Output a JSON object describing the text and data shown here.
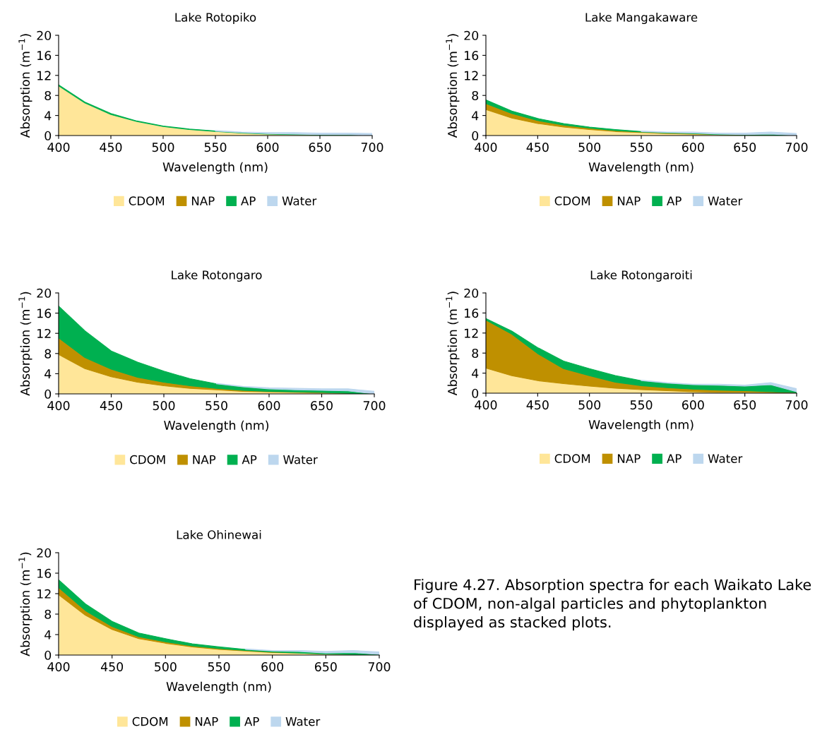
{
  "chart_data": [
    {
      "type": "area",
      "stacked": true,
      "title": "Lake Rotopiko",
      "xlabel": "Wavelength (nm)",
      "ylabel": "Absorption (m$^{−1}$)",
      "x": [
        400,
        425,
        450,
        475,
        500,
        525,
        550,
        575,
        600,
        625,
        650,
        675,
        700
      ],
      "xlim": [
        400,
        700
      ],
      "xticks": [
        400,
        450,
        500,
        550,
        600,
        650,
        700
      ],
      "ylim": [
        0,
        20
      ],
      "yticks": [
        0,
        4,
        8,
        12,
        16,
        20
      ],
      "legend": "bottom",
      "series": [
        {
          "name": "CDOM",
          "color": "#ffe699",
          "values": [
            9.9,
            6.5,
            4.2,
            2.8,
            1.8,
            1.2,
            0.8,
            0.5,
            0.3,
            0.2,
            0.1,
            0.1,
            0
          ]
        },
        {
          "name": "NAP",
          "color": "#bf9000",
          "values": [
            null,
            null,
            null,
            null,
            null,
            null,
            null,
            null,
            null,
            null,
            null,
            null,
            null
          ]
        },
        {
          "name": "AP",
          "color": "#00b050",
          "values": [
            0.2,
            0.2,
            0.2,
            0.1,
            0.1,
            0.1,
            0.1,
            0.1,
            0.1,
            0.1,
            0.1,
            0.1,
            0
          ]
        },
        {
          "name": "Water",
          "color": "#bdd7ee",
          "values": [
            null,
            null,
            null,
            null,
            null,
            null,
            0.1,
            0.1,
            0.2,
            0.3,
            0.3,
            0.3,
            0.4
          ]
        }
      ]
    },
    {
      "type": "area",
      "stacked": true,
      "title": "Lake Mangakaware",
      "xlabel": "Wavelength (nm)",
      "ylabel": "Absorption (m$^{−1}$)",
      "x": [
        400,
        425,
        450,
        475,
        500,
        525,
        550,
        575,
        600,
        625,
        650,
        675,
        700
      ],
      "xlim": [
        400,
        700
      ],
      "xticks": [
        400,
        450,
        500,
        550,
        600,
        650,
        700
      ],
      "ylim": [
        0,
        20
      ],
      "yticks": [
        0,
        4,
        8,
        12,
        16,
        20
      ],
      "legend": "bottom",
      "series": [
        {
          "name": "CDOM",
          "color": "#ffe699",
          "values": [
            5.2,
            3.5,
            2.4,
            1.7,
            1.2,
            0.8,
            0.6,
            0.4,
            0.3,
            0.2,
            0.1,
            0.1,
            0
          ]
        },
        {
          "name": "NAP",
          "color": "#bf9000",
          "values": [
            1.2,
            0.9,
            0.6,
            0.4,
            0.3,
            0.2,
            0.1,
            0.1,
            0.1,
            0,
            0,
            0,
            0
          ]
        },
        {
          "name": "AP",
          "color": "#00b050",
          "values": [
            0.7,
            0.5,
            0.4,
            0.3,
            0.2,
            0.2,
            0.1,
            0.1,
            0.1,
            0.1,
            0.1,
            0.2,
            0
          ]
        },
        {
          "name": "Water",
          "color": "#bdd7ee",
          "values": [
            null,
            null,
            null,
            null,
            null,
            null,
            0.1,
            0.1,
            0.2,
            0.2,
            0.3,
            0.4,
            0.4
          ]
        }
      ]
    },
    {
      "type": "area",
      "stacked": true,
      "title": "Lake Rotongaro",
      "xlabel": "Wavelength (nm)",
      "ylabel": "Absorption (m$^{−1}$)",
      "x": [
        400,
        425,
        450,
        475,
        500,
        525,
        550,
        575,
        600,
        625,
        650,
        675,
        700
      ],
      "xlim": [
        400,
        700
      ],
      "xticks": [
        400,
        450,
        500,
        550,
        600,
        650,
        700
      ],
      "ylim": [
        0,
        20
      ],
      "yticks": [
        0,
        4,
        8,
        12,
        16,
        20
      ],
      "legend": "bottom",
      "series": [
        {
          "name": "CDOM",
          "color": "#ffe699",
          "values": [
            7.8,
            5.0,
            3.4,
            2.3,
            1.6,
            1.1,
            0.8,
            0.5,
            0.4,
            0.3,
            0.2,
            0.1,
            0
          ]
        },
        {
          "name": "NAP",
          "color": "#bf9000",
          "values": [
            3.3,
            2.2,
            1.5,
            1.0,
            0.7,
            0.5,
            0.3,
            0.2,
            0.1,
            0.1,
            0.1,
            0,
            0
          ]
        },
        {
          "name": "AP",
          "color": "#00b050",
          "values": [
            6.3,
            5.3,
            3.6,
            3.0,
            2.2,
            1.4,
            0.9,
            0.7,
            0.5,
            0.4,
            0.4,
            0.5,
            0
          ]
        },
        {
          "name": "Water",
          "color": "#bdd7ee",
          "values": [
            null,
            null,
            null,
            null,
            null,
            null,
            0.1,
            0.1,
            0.2,
            0.3,
            0.3,
            0.4,
            0.5
          ]
        }
      ]
    },
    {
      "type": "area",
      "stacked": true,
      "title": "Lake Rotongaroiti",
      "xlabel": "Wavelength (nm)",
      "ylabel": "Absorption (m$^{−1}$)",
      "x": [
        400,
        425,
        450,
        475,
        500,
        525,
        550,
        575,
        600,
        625,
        650,
        675,
        700
      ],
      "xlim": [
        400,
        700
      ],
      "xticks": [
        400,
        450,
        500,
        550,
        600,
        650,
        700
      ],
      "ylim": [
        0,
        20
      ],
      "yticks": [
        0,
        4,
        8,
        12,
        16,
        20
      ],
      "legend": "bottom",
      "series": [
        {
          "name": "CDOM",
          "color": "#ffe699",
          "values": [
            5.0,
            3.5,
            2.5,
            1.9,
            1.4,
            1.0,
            0.7,
            0.5,
            0.3,
            0.2,
            0.2,
            0.1,
            0
          ]
        },
        {
          "name": "NAP",
          "color": "#bf9000",
          "values": [
            9.6,
            8.3,
            5.4,
            3.0,
            2.1,
            1.2,
            0.8,
            0.6,
            0.5,
            0.4,
            0.3,
            0.2,
            0.1
          ]
        },
        {
          "name": "AP",
          "color": "#00b050",
          "values": [
            0.3,
            0.6,
            1.2,
            1.5,
            1.4,
            1.3,
            1.0,
            0.9,
            0.9,
            1.0,
            0.9,
            1.4,
            0.2
          ]
        },
        {
          "name": "Water",
          "color": "#bdd7ee",
          "values": [
            null,
            null,
            null,
            null,
            null,
            null,
            0.1,
            0.1,
            0.1,
            0.2,
            0.2,
            0.4,
            0.6
          ]
        }
      ]
    },
    {
      "type": "area",
      "stacked": true,
      "title": "Lake Ohinewai",
      "xlabel": "Wavelength (nm)",
      "ylabel": "Absorption (m$^{−1}$)",
      "x": [
        400,
        425,
        450,
        475,
        500,
        525,
        550,
        575,
        600,
        625,
        650,
        675,
        700
      ],
      "xlim": [
        400,
        700
      ],
      "xticks": [
        400,
        450,
        500,
        550,
        600,
        650,
        700
      ],
      "ylim": [
        0,
        20
      ],
      "yticks": [
        0,
        4,
        8,
        12,
        16,
        20
      ],
      "legend": "bottom",
      "annotations": [
        "Figure 4.27. Absorption spectra for each Waikato Lake of CDOM, non-algal particles and phytoplankton displayed as stacked plots."
      ],
      "series": [
        {
          "name": "CDOM",
          "color": "#ffe699",
          "values": [
            11.8,
            7.8,
            5.0,
            3.2,
            2.3,
            1.6,
            1.1,
            0.8,
            0.5,
            0.4,
            0.2,
            0.1,
            0
          ]
        },
        {
          "name": "NAP",
          "color": "#bf9000",
          "values": [
            1.4,
            0.9,
            0.6,
            0.4,
            0.3,
            0.2,
            0.2,
            0.1,
            0.1,
            0,
            0,
            0,
            0
          ]
        },
        {
          "name": "AP",
          "color": "#00b050",
          "values": [
            1.5,
            1.3,
            1.0,
            0.7,
            0.6,
            0.4,
            0.3,
            0.2,
            0.2,
            0.3,
            0.2,
            0.4,
            0.1
          ]
        },
        {
          "name": "Water",
          "color": "#bdd7ee",
          "values": [
            null,
            null,
            null,
            null,
            null,
            null,
            null,
            0.1,
            0.1,
            0.2,
            0.3,
            0.4,
            0.5
          ]
        }
      ]
    }
  ]
}
